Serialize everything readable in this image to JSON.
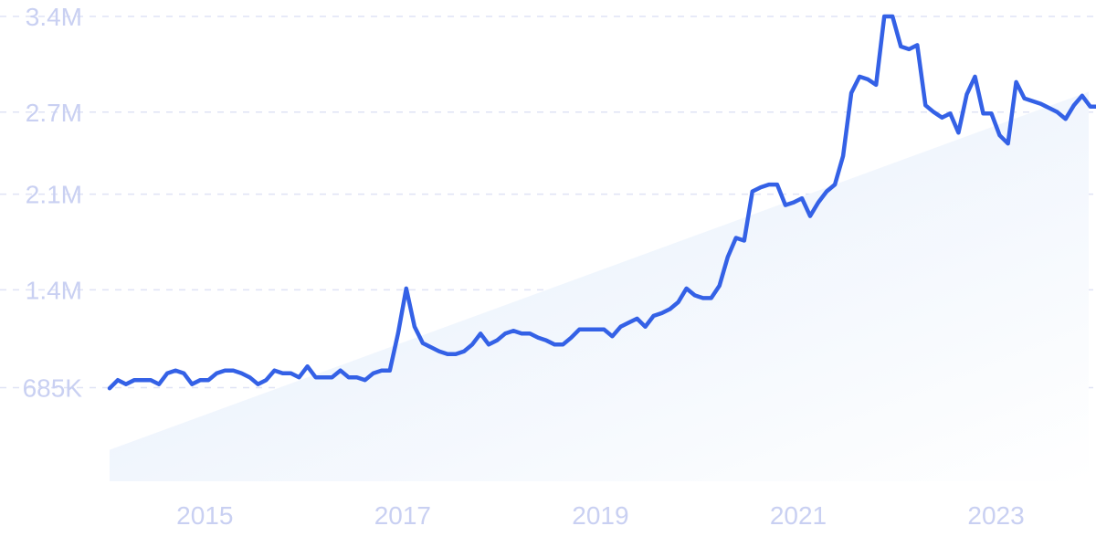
{
  "chart_data": {
    "type": "line",
    "title": "",
    "xlabel": "",
    "ylabel": "",
    "x_start": "2014-01",
    "x_end": "2023-12",
    "xlim": [
      2014.0,
      2023.9
    ],
    "ylim": [
      0,
      3400000
    ],
    "y_ticks": [
      {
        "value": 685000,
        "label": "685K"
      },
      {
        "value": 1400000,
        "label": "1.4M"
      },
      {
        "value": 2100000,
        "label": "2.1M"
      },
      {
        "value": 2700000,
        "label": "2.7M"
      },
      {
        "value": 3400000,
        "label": "3.4M"
      }
    ],
    "x_ticks": [
      {
        "value": 2015,
        "label": "2015"
      },
      {
        "value": 2017,
        "label": "2017"
      },
      {
        "value": 2019,
        "label": "2019"
      },
      {
        "value": 2021,
        "label": "2021"
      },
      {
        "value": 2023,
        "label": "2023"
      }
    ],
    "grid": true,
    "legend": "none",
    "colors": {
      "line": "#3461e6",
      "area_start": "#e3edfb",
      "area_end": "#ffffff",
      "grid": "#dfe3f5",
      "tick": "#c9d0f2"
    },
    "trend_band": {
      "start": 230000,
      "end": 2850000
    },
    "series": [
      {
        "values": [
          680000,
          740000,
          710000,
          740000,
          740000,
          740000,
          710000,
          790000,
          810000,
          790000,
          710000,
          740000,
          740000,
          790000,
          810000,
          810000,
          790000,
          760000,
          710000,
          740000,
          810000,
          790000,
          790000,
          760000,
          840000,
          760000,
          760000,
          760000,
          810000,
          760000,
          760000,
          740000,
          790000,
          810000,
          810000,
          1080000,
          1410000,
          1130000,
          1010000,
          980000,
          950000,
          930000,
          930000,
          950000,
          1000000,
          1080000,
          1000000,
          1030000,
          1080000,
          1100000,
          1080000,
          1080000,
          1050000,
          1030000,
          1000000,
          1000000,
          1050000,
          1110000,
          1110000,
          1110000,
          1110000,
          1060000,
          1130000,
          1160000,
          1190000,
          1130000,
          1210000,
          1230000,
          1260000,
          1310000,
          1410000,
          1360000,
          1340000,
          1340000,
          1430000,
          1640000,
          1780000,
          1760000,
          2120000,
          2150000,
          2170000,
          2170000,
          2020000,
          2040000,
          2070000,
          1940000,
          2040000,
          2120000,
          2170000,
          2380000,
          2840000,
          2960000,
          2940000,
          2900000,
          3400000,
          3400000,
          3180000,
          3160000,
          3190000,
          2750000,
          2700000,
          2660000,
          2690000,
          2550000,
          2830000,
          2960000,
          2690000,
          2690000,
          2530000,
          2470000,
          2920000,
          2800000,
          2780000,
          2760000,
          2730000,
          2700000,
          2650000,
          2750000,
          2820000,
          2740000,
          2740000
        ]
      }
    ]
  }
}
